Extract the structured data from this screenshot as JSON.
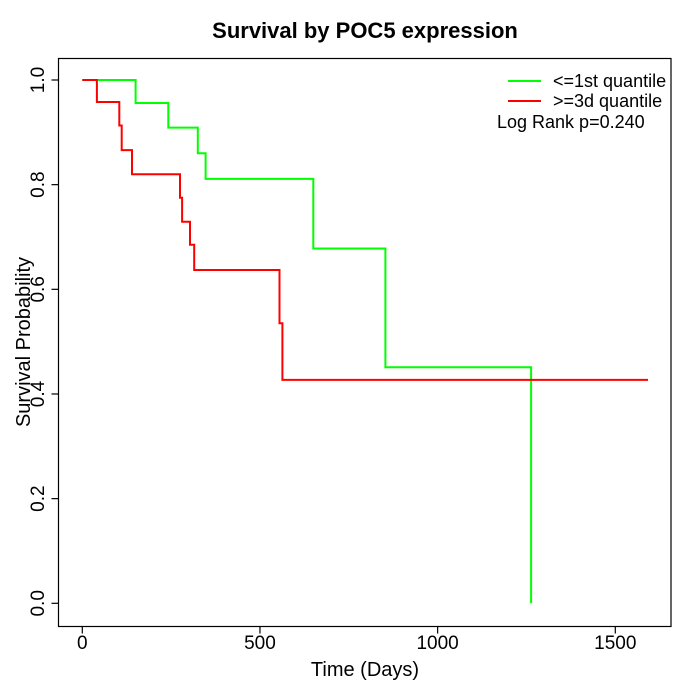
{
  "chart_data": {
    "type": "line",
    "subtype": "kaplan-meier-step",
    "title": "Survival by POC5 expression",
    "xlabel": "Time (Days)",
    "ylabel": "Survival Probability",
    "xticks": [
      0,
      500,
      1000,
      1500
    ],
    "yticks": [
      0.0,
      0.2,
      0.4,
      0.6,
      0.8,
      1.0
    ],
    "xlim": [
      -65,
      1660
    ],
    "ylim": [
      -0.044,
      1.042
    ],
    "grid": false,
    "legend_position": "top-right",
    "annotation": "Log Rank p=0.240",
    "axis_color": "#000000",
    "background_color": "#ffffff",
    "series": [
      {
        "name": "<=1st quantile",
        "key": "first-quantile",
        "color": "#00ff00",
        "steps": [
          [
            0,
            1.0
          ],
          [
            150,
            0.956
          ],
          [
            242,
            0.909
          ],
          [
            325,
            0.86
          ],
          [
            347,
            0.811
          ],
          [
            650,
            0.678
          ],
          [
            853,
            0.451
          ],
          [
            1263,
            0.0
          ]
        ],
        "end_x": 1263
      },
      {
        "name": ">=3d quantile",
        "key": "third-quantile",
        "color": "#ff0000",
        "steps": [
          [
            0,
            1.0
          ],
          [
            41,
            0.958
          ],
          [
            104,
            0.913
          ],
          [
            111,
            0.866
          ],
          [
            140,
            0.82
          ],
          [
            275,
            0.775
          ],
          [
            281,
            0.729
          ],
          [
            303,
            0.685
          ],
          [
            315,
            0.637
          ],
          [
            555,
            0.535
          ],
          [
            563,
            0.427
          ]
        ],
        "end_x": 1592
      }
    ]
  }
}
